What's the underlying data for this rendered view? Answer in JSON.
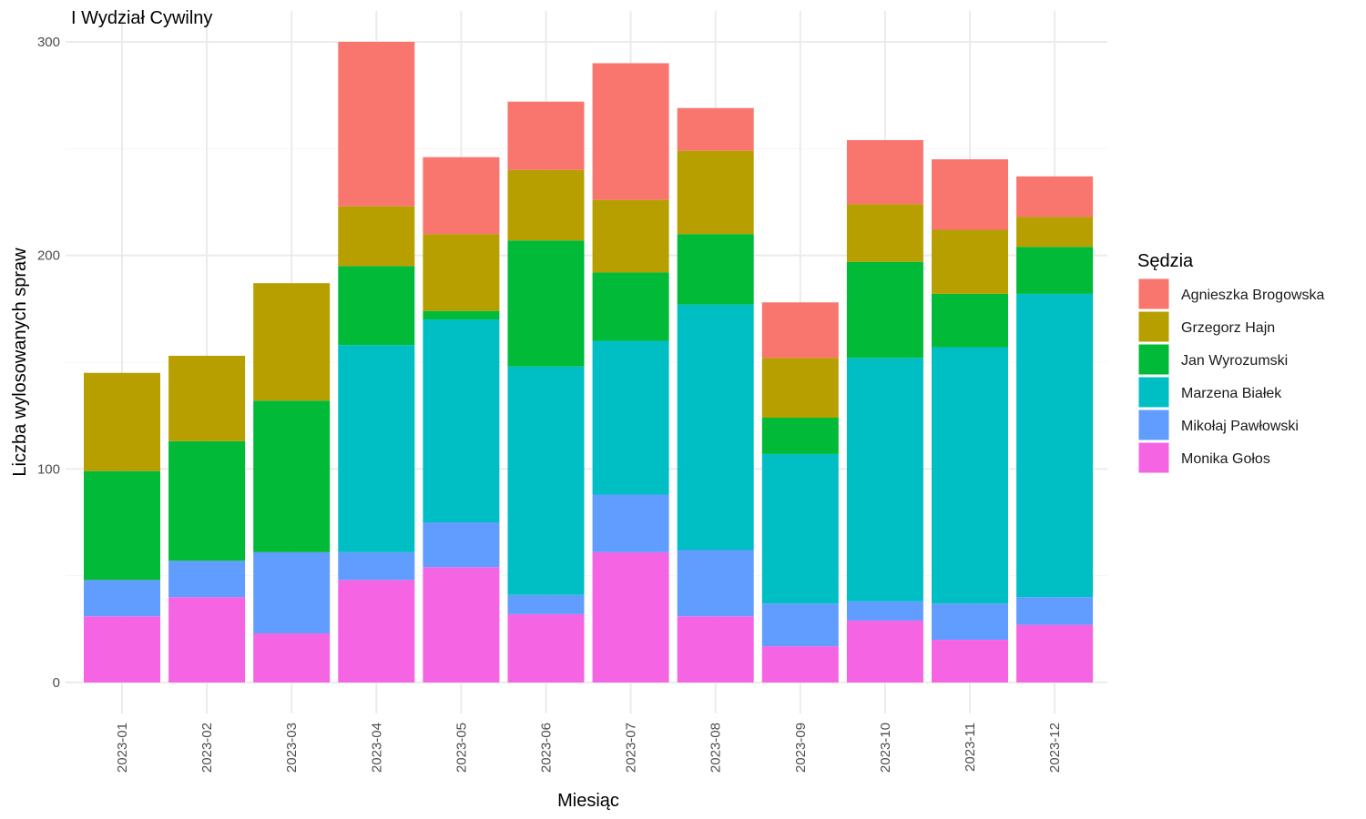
{
  "chart_data": {
    "type": "bar",
    "stacked": true,
    "title": "I Wydział Cywilny",
    "xlabel": "Miesiąc",
    "ylabel": "Liczba wylosowanych spraw",
    "ylim": [
      0,
      300
    ],
    "yticks": [
      0,
      100,
      200,
      300
    ],
    "grid": true,
    "legend_title": "Sędzia",
    "legend_position": "right",
    "categories": [
      "2023-01",
      "2023-02",
      "2023-03",
      "2023-04",
      "2023-05",
      "2023-06",
      "2023-07",
      "2023-08",
      "2023-09",
      "2023-10",
      "2023-11",
      "2023-12"
    ],
    "series": [
      {
        "name": "Agnieszka Brogowska",
        "color": "#F8766D",
        "values": [
          0,
          0,
          0,
          77,
          36,
          32,
          64,
          20,
          26,
          30,
          33,
          19
        ]
      },
      {
        "name": "Grzegorz Hajn",
        "color": "#B79F00",
        "values": [
          46,
          40,
          55,
          28,
          36,
          33,
          34,
          39,
          28,
          27,
          30,
          14
        ]
      },
      {
        "name": "Jan Wyrozumski",
        "color": "#00BA38",
        "values": [
          51,
          56,
          71,
          37,
          4,
          59,
          32,
          33,
          17,
          45,
          25,
          22
        ]
      },
      {
        "name": "Marzena Białek",
        "color": "#00BFC4",
        "values": [
          0,
          0,
          0,
          97,
          95,
          107,
          72,
          115,
          70,
          114,
          120,
          142
        ]
      },
      {
        "name": "Mikołaj Pawłowski",
        "color": "#619CFF",
        "values": [
          17,
          17,
          38,
          13,
          21,
          9,
          27,
          31,
          20,
          9,
          17,
          13
        ]
      },
      {
        "name": "Monika Gołos",
        "color": "#F564E3",
        "values": [
          31,
          40,
          23,
          48,
          54,
          32,
          61,
          31,
          17,
          29,
          20,
          27
        ]
      }
    ]
  }
}
